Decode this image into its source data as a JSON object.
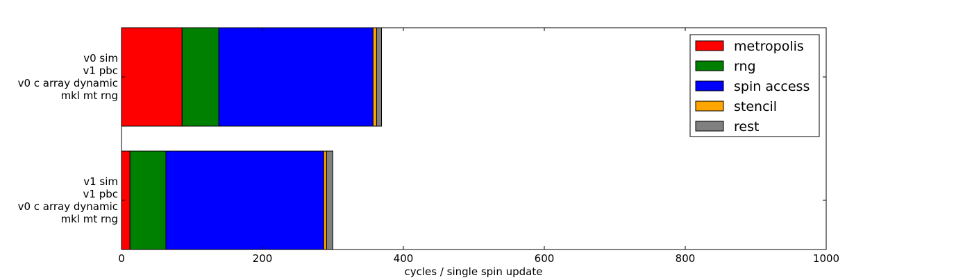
{
  "chart_data": {
    "type": "bar",
    "orientation": "horizontal",
    "stacked": true,
    "xlabel": "cycles / single spin update",
    "xlim": [
      0,
      1000
    ],
    "xticks": [
      0,
      200,
      400,
      600,
      800,
      1000
    ],
    "grid": false,
    "legend_position": "top-right",
    "categories": [
      [
        "v0 sim",
        "v1 pbc",
        "v0 c array dynamic",
        "mkl mt rng"
      ],
      [
        "v1 sim",
        "v1 pbc",
        "v0 c array dynamic",
        "mkl mt rng"
      ]
    ],
    "series": [
      {
        "name": "metropolis",
        "color": "#ff0000",
        "values": [
          86,
          12
        ]
      },
      {
        "name": "rng",
        "color": "#008000",
        "values": [
          52,
          51
        ]
      },
      {
        "name": "spin access",
        "color": "#0000ff",
        "values": [
          219,
          224
        ]
      },
      {
        "name": "stencil",
        "color": "#ffa500",
        "values": [
          5,
          4
        ]
      },
      {
        "name": "rest",
        "color": "#808080",
        "values": [
          7,
          9
        ]
      }
    ]
  }
}
